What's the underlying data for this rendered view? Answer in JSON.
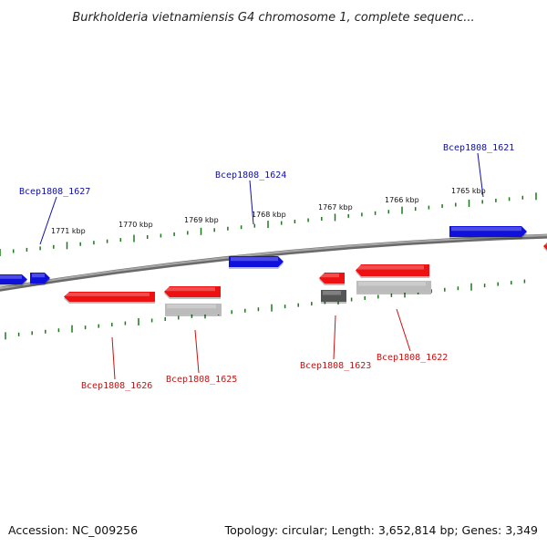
{
  "title": "Burkholderia vietnamiensis G4 chromosome 1, complete sequenc...",
  "footer": {
    "accession": "Accession: NC_009256",
    "topology": "Topology: circular; Length: 3,652,814 bp; Genes: 3,349"
  },
  "colors": {
    "forward_gene": "#1010dd",
    "reverse_gene": "#ee1111",
    "other_dark": "#555555",
    "other_light": "#bbbbbb",
    "tick": "#1a7a1a",
    "backbone": "#888888",
    "label_forward": "#1010aa",
    "label_reverse": "#cc1111"
  },
  "scale_labels": [
    "1771 kbp",
    "1770 kbp",
    "1769 kbp",
    "1768 kbp",
    "1767 kbp",
    "1766 kbp",
    "1765 kbp"
  ],
  "genes": [
    {
      "label": "Bcep1808_1627",
      "strand": "forward"
    },
    {
      "label": "Bcep1808_1624",
      "strand": "forward"
    },
    {
      "label": "Bcep1808_1621",
      "strand": "forward"
    },
    {
      "label": "Bcep1808_1626",
      "strand": "reverse"
    },
    {
      "label": "Bcep1808_1625",
      "strand": "reverse"
    },
    {
      "label": "Bcep1808_1623",
      "strand": "reverse"
    },
    {
      "label": "Bcep1808_1622",
      "strand": "reverse"
    }
  ]
}
